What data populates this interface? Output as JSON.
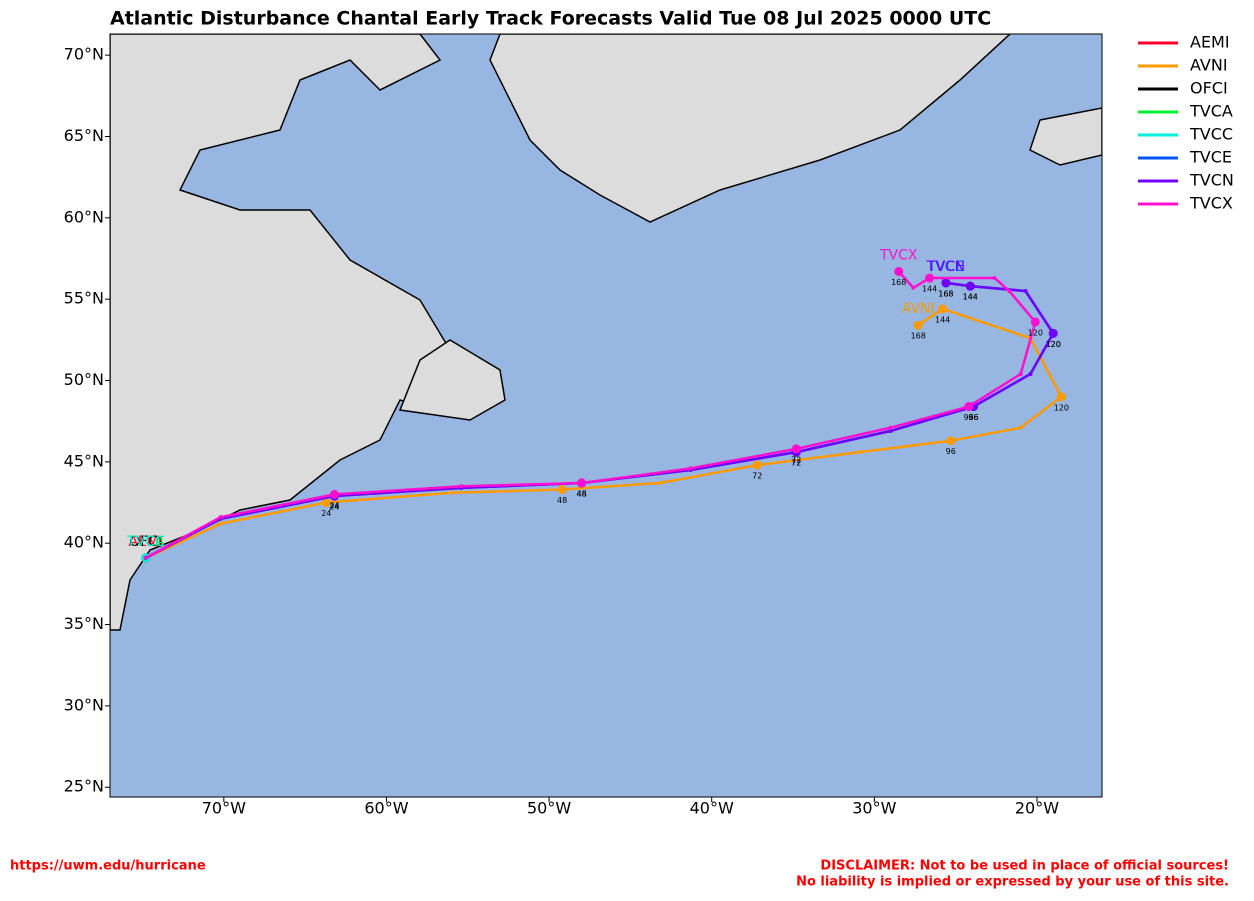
{
  "chart_data": {
    "type": "track-map",
    "title": "Atlantic Disturbance Chantal Early Track Forecasts Valid Tue 08 Jul 2025 0000 UTC",
    "xlim": [
      -77,
      -16
    ],
    "ylim": [
      24.4,
      71.3
    ],
    "xticks": [
      {
        "value": -70,
        "label": "70°W"
      },
      {
        "value": -60,
        "label": "60°W"
      },
      {
        "value": -50,
        "label": "50°W"
      },
      {
        "value": -40,
        "label": "40°W"
      },
      {
        "value": -30,
        "label": "30°W"
      },
      {
        "value": -20,
        "label": "20°W"
      }
    ],
    "yticks": [
      {
        "value": 25,
        "label": "25°N"
      },
      {
        "value": 30,
        "label": "30°N"
      },
      {
        "value": 35,
        "label": "35°N"
      },
      {
        "value": 40,
        "label": "40°N"
      },
      {
        "value": 45,
        "label": "45°N"
      },
      {
        "value": 50,
        "label": "50°N"
      },
      {
        "value": 55,
        "label": "55°N"
      },
      {
        "value": 60,
        "label": "60°N"
      },
      {
        "value": 65,
        "label": "65°N"
      },
      {
        "value": 70,
        "label": "70°N"
      }
    ],
    "series": [
      {
        "name": "AEMI",
        "color": "#ff0028",
        "lon": [
          -74.8
        ],
        "lat": [
          39.1
        ],
        "tau": [
          null
        ]
      },
      {
        "name": "AVNI",
        "color": "#ff9a00",
        "lon": [
          -74.8,
          -70.2,
          -63.7,
          -56.0,
          -49.2,
          -43.2,
          -37.2,
          -30.9,
          -25.3,
          -21.0,
          -18.5,
          -20.4,
          -25.8,
          -27.3
        ],
        "lat": [
          39.1,
          41.2,
          42.5,
          43.1,
          43.3,
          43.7,
          44.8,
          45.6,
          46.3,
          47.1,
          49.0,
          52.6,
          54.4,
          53.4
        ],
        "tau": [
          null,
          null,
          24,
          null,
          48,
          null,
          72,
          null,
          96,
          null,
          120,
          null,
          144,
          168
        ]
      },
      {
        "name": "OFCI",
        "color": "#000000",
        "lon": [
          -74.8
        ],
        "lat": [
          39.1
        ],
        "tau": [
          null
        ]
      },
      {
        "name": "TVCA",
        "color": "#00ee33",
        "lon": [
          -74.8
        ],
        "lat": [
          39.1
        ],
        "tau": [
          null
        ]
      },
      {
        "name": "TVCC",
        "color": "#00f0e0",
        "lon": [
          -74.8
        ],
        "lat": [
          39.1
        ],
        "tau": [
          null
        ]
      },
      {
        "name": "TVCE",
        "color": "#0055ff",
        "lon": [
          -74.8,
          -70.2,
          -63.2,
          -55.4,
          -48.0,
          -41.3,
          -34.8,
          -29.0,
          -23.9,
          -20.4,
          -19.0,
          -20.7,
          -24.1,
          -25.6
        ],
        "lat": [
          39.1,
          41.5,
          42.9,
          43.4,
          43.7,
          44.5,
          45.6,
          46.9,
          48.4,
          50.4,
          52.9,
          55.5,
          55.8,
          56.0
        ],
        "tau": [
          null,
          null,
          24,
          null,
          48,
          null,
          72,
          null,
          96,
          null,
          120,
          null,
          144,
          168
        ]
      },
      {
        "name": "TVCN",
        "color": "#7000ff",
        "lon": [
          -74.8,
          -70.2,
          -63.2,
          -55.4,
          -48.0,
          -41.3,
          -34.8,
          -29.0,
          -23.9,
          -20.4,
          -19.0,
          -20.7,
          -24.1,
          -25.6
        ],
        "lat": [
          39.1,
          41.5,
          42.9,
          43.4,
          43.7,
          44.5,
          45.6,
          46.9,
          48.4,
          50.4,
          52.9,
          55.5,
          55.8,
          56.0
        ],
        "tau": [
          null,
          null,
          24,
          null,
          48,
          null,
          72,
          null,
          96,
          null,
          120,
          null,
          144,
          168
        ]
      },
      {
        "name": "TVCX",
        "color": "#ff10d0",
        "lon": [
          -74.8,
          -70.2,
          -63.2,
          -55.4,
          -48.0,
          -41.3,
          -34.8,
          -29.0,
          -24.2,
          -21.0,
          -20.1,
          -21.7,
          -22.6,
          -26.6,
          -27.6,
          -28.5
        ],
        "lat": [
          39.1,
          41.6,
          43.0,
          43.5,
          43.7,
          44.6,
          45.8,
          47.1,
          48.4,
          50.4,
          53.6,
          55.5,
          56.3,
          56.3,
          55.7,
          56.7
        ],
        "tau": [
          null,
          null,
          24,
          null,
          48,
          null,
          72,
          null,
          96,
          null,
          120,
          null,
          null,
          144,
          null,
          168
        ]
      }
    ]
  },
  "footer": {
    "url": "https://uwm.edu/hurricane",
    "disclaimer": [
      "DISCLAIMER: Not to be used in place of official sources!",
      "No liability is implied or expressed by your use of this site."
    ]
  }
}
